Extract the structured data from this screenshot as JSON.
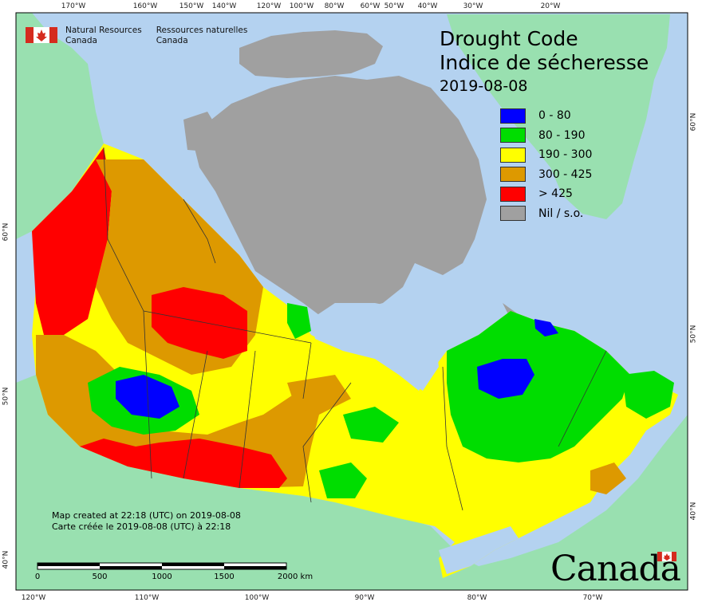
{
  "agency": {
    "name_en_line1": "Natural Resources",
    "name_en_line2": "Canada",
    "name_fr_line1": "Ressources naturelles",
    "name_fr_line2": "Canada"
  },
  "title": {
    "en": "Drought Code",
    "fr": "Indice de sécheresse",
    "date": "2019-08-08"
  },
  "legend": [
    {
      "label": "0 - 80",
      "color": "#0000ff"
    },
    {
      "label": "80 - 190",
      "color": "#00dd00"
    },
    {
      "label": "190 - 300",
      "color": "#ffff00"
    },
    {
      "label": "300 - 425",
      "color": "#dd9900"
    },
    {
      "label": "> 425",
      "color": "#ff0000"
    },
    {
      "label": "Nil / s.o.",
      "color": "#a0a0a0"
    }
  ],
  "colors": {
    "ocean": "#b4d2f0",
    "foreign_land": "#99e0b0",
    "border": "#333333"
  },
  "graticule": {
    "top": [
      "170°W",
      "160°W",
      "150°W",
      "140°W",
      "120°W",
      "100°W",
      "80°W",
      "60°W",
      "50°W",
      "40°W",
      "30°W",
      "20°W"
    ],
    "bottom": [
      "120°W",
      "110°W",
      "100°W",
      "90°W",
      "80°W",
      "70°W"
    ],
    "left": [
      "60°N",
      "50°N",
      "40°N"
    ],
    "right": [
      "60°N",
      "50°N",
      "40°N"
    ]
  },
  "credits": {
    "en": "Map created at 22:18 (UTC) on 2019-08-08",
    "fr": "Carte créée le 2019-08-08 (UTC) à 22:18"
  },
  "scale_bar": {
    "labels": [
      "0",
      "500",
      "1000",
      "1500",
      "2000  km"
    ]
  },
  "wordmark": "Canada"
}
